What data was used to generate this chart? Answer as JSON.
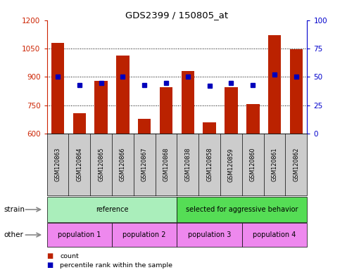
{
  "title": "GDS2399 / 150805_at",
  "categories": [
    "GSM120863",
    "GSM120864",
    "GSM120865",
    "GSM120866",
    "GSM120867",
    "GSM120868",
    "GSM120838",
    "GSM120858",
    "GSM120859",
    "GSM120860",
    "GSM120861",
    "GSM120862"
  ],
  "counts": [
    1080,
    710,
    880,
    1015,
    678,
    845,
    930,
    658,
    845,
    758,
    1120,
    1048
  ],
  "percentiles": [
    50,
    43,
    45,
    50,
    43,
    45,
    50,
    42,
    45,
    43,
    52,
    50
  ],
  "ylim_left": [
    600,
    1200
  ],
  "ylim_right": [
    0,
    100
  ],
  "yticks_left": [
    600,
    750,
    900,
    1050,
    1200
  ],
  "yticks_right": [
    0,
    25,
    50,
    75,
    100
  ],
  "bar_color": "#bb2200",
  "dot_color": "#0000bb",
  "plot_bg": "#ffffff",
  "xtick_bg": "#cccccc",
  "strain_items": [
    {
      "text": "reference",
      "start": 0,
      "end": 6,
      "color": "#aaeebb"
    },
    {
      "text": "selected for aggressive behavior",
      "start": 6,
      "end": 12,
      "color": "#55dd55"
    }
  ],
  "other_items": [
    {
      "text": "population 1",
      "start": 0,
      "end": 3,
      "color": "#ee88ee"
    },
    {
      "text": "population 2",
      "start": 3,
      "end": 6,
      "color": "#ee88ee"
    },
    {
      "text": "population 3",
      "start": 6,
      "end": 9,
      "color": "#ee88ee"
    },
    {
      "text": "population 4",
      "start": 9,
      "end": 12,
      "color": "#ee88ee"
    }
  ],
  "left_axis_color": "#cc2200",
  "right_axis_color": "#0000cc",
  "legend_items": [
    {
      "color": "#bb2200",
      "label": "count"
    },
    {
      "color": "#0000bb",
      "label": "percentile rank within the sample"
    }
  ],
  "n_cats": 12
}
